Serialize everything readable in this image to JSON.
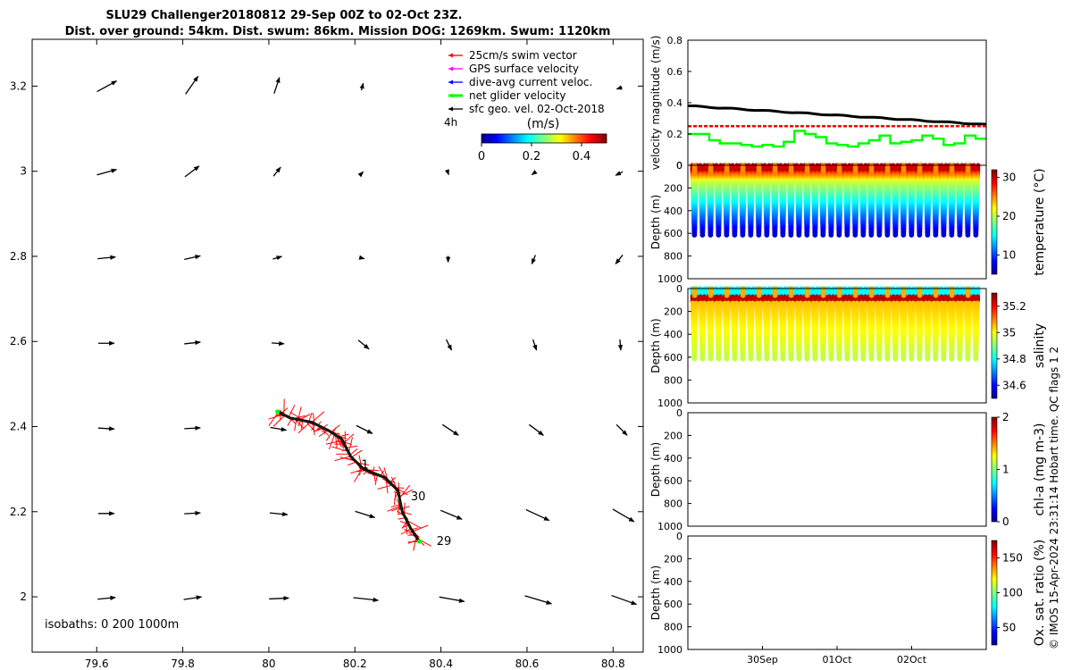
{
  "title_line1": "SLU29 Challenger20180812 29-Sep 00Z to 02-Oct 23Z.",
  "title_line2": "Dist. over ground: 54km. Dist. swum: 86km. Mission DOG: 1269km. Swum: 1120km",
  "copyright": "© IMOS 15-Apr-2024 23:31:14 Hobart time. QC flags 1  2",
  "colors": {
    "swim_vector": "#ff0000",
    "gps_velocity": "#ff00ff",
    "dive_avg": "#0000ff",
    "net_glider": "#00ff00",
    "sfc_geo": "#000000"
  },
  "chart_data": [
    {
      "type": "map",
      "xlim": [
        79.45,
        80.87
      ],
      "ylim": [
        1.87,
        3.31
      ],
      "x_ticks": [
        "79.6",
        "79.8",
        "80",
        "80.2",
        "80.4",
        "80.6",
        "80.8"
      ],
      "y_ticks": [
        "2",
        "2.2",
        "2.4",
        "2.6",
        "2.8",
        "3",
        "3.2"
      ],
      "legend": [
        {
          "label": "25cm/s swim vector",
          "color": "#ff0000"
        },
        {
          "label": "GPS surface velocity",
          "color": "#ff00ff"
        },
        {
          "label": "dive-avg current veloc.",
          "color": "#0000ff"
        },
        {
          "label": "net glider velocity",
          "color": "#00ff00"
        },
        {
          "label": "sfc geo. vel. 02-Oct-2018",
          "color": "#000000"
        }
      ],
      "time_step_label": "4h",
      "colorbar": {
        "label": "(m/s)",
        "ticks": [
          "0",
          "0.2",
          "0.4"
        ],
        "range": [
          0,
          0.5
        ]
      },
      "track_day_labels": [
        {
          "text": "29",
          "x": 80.39,
          "y": 2.13
        },
        {
          "text": "30",
          "x": 80.33,
          "y": 2.235
        },
        {
          "text": "1",
          "x": 80.215,
          "y": 2.31
        }
      ],
      "isobath_label": "isobaths: 0   200  1000m",
      "glider_track": [
        [
          80.35,
          2.13
        ],
        [
          80.33,
          2.16
        ],
        [
          80.31,
          2.2
        ],
        [
          80.3,
          2.25
        ],
        [
          80.27,
          2.28
        ],
        [
          80.22,
          2.3
        ],
        [
          80.19,
          2.33
        ],
        [
          80.17,
          2.37
        ],
        [
          80.14,
          2.39
        ],
        [
          80.1,
          2.41
        ],
        [
          80.05,
          2.42
        ],
        [
          80.02,
          2.435
        ]
      ]
    },
    {
      "type": "line",
      "ylabel": "velocity magnitude (m/s)",
      "ylim": [
        0,
        0.8
      ],
      "y_ticks": [
        "0",
        "0.2",
        "0.4",
        "0.6",
        "0.8"
      ],
      "series": [
        {
          "color": "#000000",
          "start": 0.38,
          "end": 0.26
        },
        {
          "color": "#ff0000",
          "value": 0.25
        },
        {
          "color": "#00ff00",
          "range": [
            0.1,
            0.22
          ]
        }
      ]
    },
    {
      "type": "scatter",
      "ylabel": "Depth (m)",
      "ylim": [
        1000,
        0
      ],
      "y_ticks": [
        "0",
        "200",
        "400",
        "600",
        "800",
        "1000"
      ],
      "cbar_label": "temperature (°C)",
      "cbar_ticks": [
        "10",
        "20",
        "30"
      ],
      "cbar_range": [
        5,
        32
      ]
    },
    {
      "type": "scatter",
      "ylabel": "Depth (m)",
      "ylim": [
        1000,
        0
      ],
      "y_ticks": [
        "0",
        "200",
        "400",
        "600",
        "800",
        "1000"
      ],
      "cbar_label": "salinity",
      "cbar_ticks": [
        "34.6",
        "34.8",
        "35",
        "35.2"
      ],
      "cbar_range": [
        34.5,
        35.3
      ]
    },
    {
      "type": "scatter",
      "ylabel": "Depth (m)",
      "ylim": [
        1000,
        0
      ],
      "y_ticks": [
        "0",
        "200",
        "400",
        "600",
        "800",
        "1000"
      ],
      "cbar_label": "chl-a (mg m-3)",
      "cbar_ticks": [
        "0",
        "1",
        "2"
      ],
      "cbar_range": [
        0,
        2
      ]
    },
    {
      "type": "scatter",
      "ylabel": "Depth (m)",
      "ylim": [
        1000,
        0
      ],
      "y_ticks": [
        "0",
        "200",
        "400",
        "600",
        "800",
        "1000"
      ],
      "cbar_label": "Ox. sat. ratio (%)",
      "cbar_ticks": [
        "50",
        "100",
        "150"
      ],
      "cbar_range": [
        25,
        175
      ],
      "x_ticks": [
        "30Sep",
        "01Oct",
        "02Oct"
      ]
    }
  ]
}
